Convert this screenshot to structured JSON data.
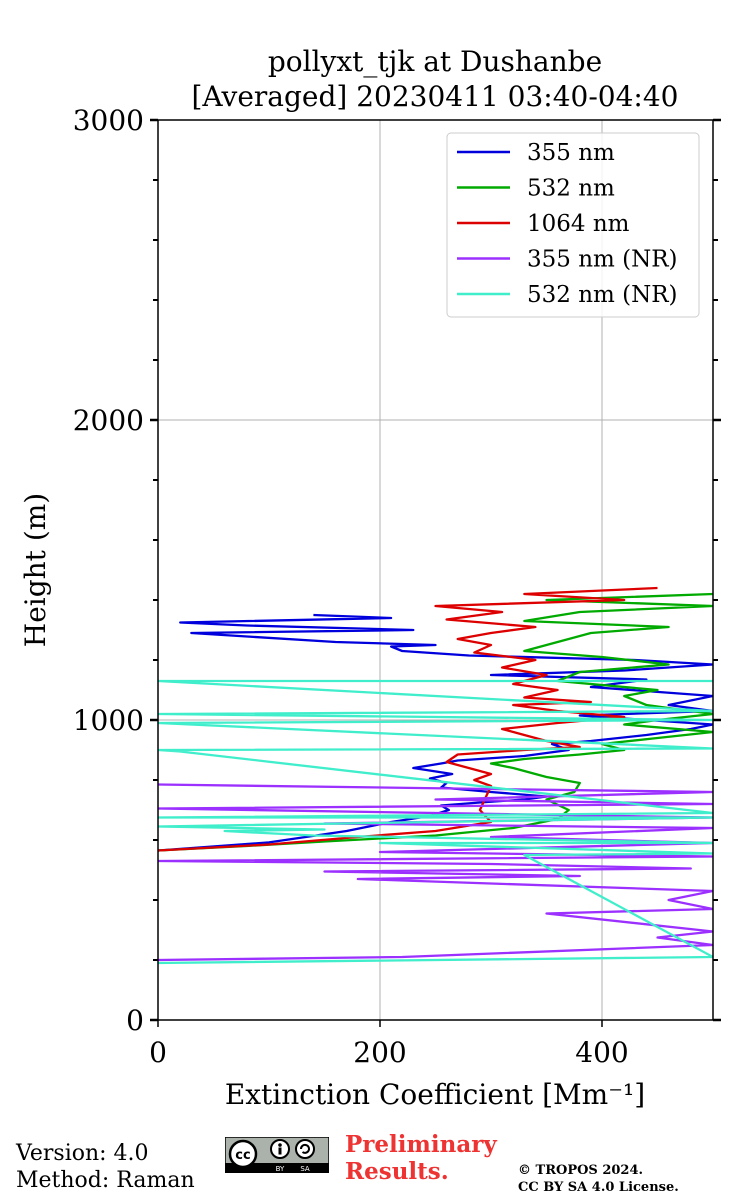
{
  "chart_data": {
    "type": "line",
    "title": [
      "pollyxt_tjk at Dushanbe",
      "[Averaged] 20230411 03:40-04:40"
    ],
    "xlabel": "Extinction Coefficient [Mm⁻¹]",
    "ylabel": "Height (m)",
    "xlim": [
      0,
      500
    ],
    "ylim": [
      0,
      3000
    ],
    "xticks": [
      0,
      200,
      400
    ],
    "yticks": [
      0,
      1000,
      2000,
      3000
    ],
    "grid": true,
    "legend_position": "top-right",
    "series": [
      {
        "name": "355 nm",
        "color": "#0000dd",
        "points": [
          [
            0,
            565
          ],
          [
            100,
            592
          ],
          [
            170,
            630
          ],
          [
            210,
            660
          ],
          [
            245,
            680
          ],
          [
            262,
            700
          ],
          [
            255,
            715
          ],
          [
            290,
            725
          ],
          [
            330,
            735
          ],
          [
            350,
            745
          ],
          [
            300,
            760
          ],
          [
            255,
            775
          ],
          [
            260,
            790
          ],
          [
            245,
            805
          ],
          [
            265,
            820
          ],
          [
            230,
            840
          ],
          [
            255,
            855
          ],
          [
            270,
            865
          ],
          [
            330,
            880
          ],
          [
            370,
            900
          ],
          [
            355,
            920
          ],
          [
            390,
            930
          ],
          [
            440,
            950
          ],
          [
            480,
            970
          ],
          [
            500,
            985
          ],
          [
            440,
            1000
          ],
          [
            380,
            1015
          ],
          [
            500,
            1030
          ],
          [
            460,
            1050
          ],
          [
            500,
            1080
          ],
          [
            390,
            1110
          ],
          [
            440,
            1135
          ],
          [
            300,
            1150
          ],
          [
            420,
            1165
          ],
          [
            500,
            1185
          ],
          [
            430,
            1200
          ],
          [
            280,
            1215
          ],
          [
            220,
            1230
          ],
          [
            210,
            1245
          ],
          [
            250,
            1250
          ],
          [
            160,
            1260
          ],
          [
            30,
            1290
          ],
          [
            230,
            1300
          ],
          [
            80,
            1315
          ],
          [
            20,
            1325
          ],
          [
            210,
            1340
          ],
          [
            140,
            1350
          ]
        ]
      },
      {
        "name": "532 nm",
        "color": "#00aa00",
        "points": [
          [
            0,
            565
          ],
          [
            80,
            580
          ],
          [
            150,
            595
          ],
          [
            250,
            615
          ],
          [
            320,
            640
          ],
          [
            360,
            670
          ],
          [
            370,
            700
          ],
          [
            350,
            735
          ],
          [
            375,
            760
          ],
          [
            380,
            790
          ],
          [
            350,
            810
          ],
          [
            320,
            840
          ],
          [
            300,
            855
          ],
          [
            330,
            870
          ],
          [
            380,
            885
          ],
          [
            420,
            900
          ],
          [
            400,
            920
          ],
          [
            450,
            940
          ],
          [
            500,
            960
          ],
          [
            420,
            985
          ],
          [
            450,
            1000
          ],
          [
            500,
            1020
          ],
          [
            440,
            1050
          ],
          [
            420,
            1080
          ],
          [
            450,
            1100
          ],
          [
            360,
            1130
          ],
          [
            380,
            1160
          ],
          [
            460,
            1185
          ],
          [
            400,
            1210
          ],
          [
            330,
            1230
          ],
          [
            360,
            1260
          ],
          [
            390,
            1290
          ],
          [
            460,
            1310
          ],
          [
            330,
            1330
          ],
          [
            380,
            1360
          ],
          [
            500,
            1380
          ],
          [
            350,
            1400
          ],
          [
            500,
            1420
          ]
        ]
      },
      {
        "name": "1064 nm",
        "color": "#dd0000",
        "points": [
          [
            0,
            565
          ],
          [
            100,
            585
          ],
          [
            180,
            610
          ],
          [
            250,
            630
          ],
          [
            300,
            660
          ],
          [
            290,
            700
          ],
          [
            295,
            740
          ],
          [
            300,
            780
          ],
          [
            285,
            800
          ],
          [
            300,
            820
          ],
          [
            260,
            860
          ],
          [
            270,
            885
          ],
          [
            330,
            900
          ],
          [
            380,
            910
          ],
          [
            350,
            930
          ],
          [
            330,
            950
          ],
          [
            310,
            970
          ],
          [
            360,
            990
          ],
          [
            420,
            1010
          ],
          [
            360,
            1030
          ],
          [
            320,
            1050
          ],
          [
            390,
            1060
          ],
          [
            330,
            1075
          ],
          [
            360,
            1100
          ],
          [
            320,
            1120
          ],
          [
            350,
            1150
          ],
          [
            310,
            1175
          ],
          [
            340,
            1200
          ],
          [
            285,
            1225
          ],
          [
            300,
            1250
          ],
          [
            270,
            1270
          ],
          [
            300,
            1290
          ],
          [
            340,
            1310
          ],
          [
            260,
            1335
          ],
          [
            310,
            1360
          ],
          [
            250,
            1380
          ],
          [
            420,
            1400
          ],
          [
            330,
            1420
          ],
          [
            450,
            1440
          ]
        ]
      },
      {
        "name": "355 nm (NR)",
        "color": "#9b30ff",
        "points": [
          [
            0,
            200
          ],
          [
            220,
            210
          ],
          [
            500,
            250
          ],
          [
            450,
            275
          ],
          [
            500,
            295
          ],
          [
            350,
            355
          ],
          [
            500,
            370
          ],
          [
            460,
            400
          ],
          [
            500,
            430
          ],
          [
            180,
            470
          ],
          [
            380,
            480
          ],
          [
            150,
            495
          ],
          [
            480,
            505
          ],
          [
            300,
            520
          ],
          [
            0,
            530
          ],
          [
            500,
            545
          ],
          [
            200,
            560
          ],
          [
            500,
            590
          ],
          [
            300,
            610
          ],
          [
            500,
            640
          ],
          [
            150,
            655
          ],
          [
            500,
            675
          ],
          [
            0,
            705
          ],
          [
            500,
            720
          ],
          [
            250,
            735
          ],
          [
            500,
            760
          ],
          [
            0,
            785
          ]
        ]
      },
      {
        "name": "532 nm (NR)",
        "color": "#40eecc",
        "points": [
          [
            0,
            190
          ],
          [
            500,
            210
          ],
          [
            330,
            550
          ],
          [
            500,
            555
          ],
          [
            200,
            590
          ],
          [
            500,
            590
          ],
          [
            140,
            615
          ],
          [
            60,
            630
          ],
          [
            150,
            635
          ],
          [
            0,
            645
          ],
          [
            500,
            675
          ],
          [
            0,
            675
          ],
          [
            500,
            690
          ],
          [
            20,
            895
          ],
          [
            0,
            900
          ],
          [
            500,
            905
          ],
          [
            0,
            990
          ],
          [
            500,
            1000
          ],
          [
            0,
            1020
          ],
          [
            500,
            1030
          ],
          [
            0,
            1130
          ],
          [
            500,
            1130
          ]
        ]
      }
    ]
  },
  "footer": {
    "version": "Version: 4.0",
    "method": "Method: Raman",
    "preliminary_line1": "Preliminary",
    "preliminary_line2": "Results.",
    "preliminary_color": "#ee3333",
    "copyright_line1": "© TROPOS 2024.",
    "copyright_line2": "CC BY SA 4.0 License.",
    "cc_label": "cc",
    "cc_by_label": "BY",
    "cc_sa_label": "SA"
  }
}
